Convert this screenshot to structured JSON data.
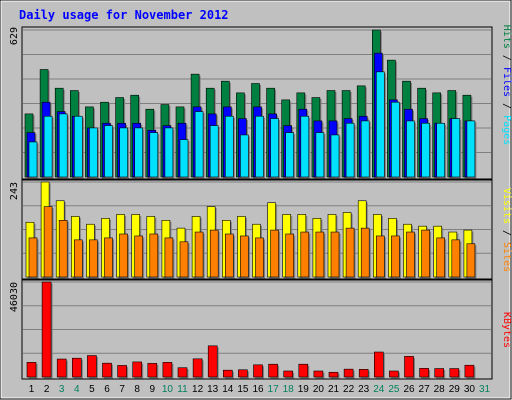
{
  "chart_data": [
    {
      "type": "bar",
      "panel": "hits-files-pages",
      "title": "Daily usage for November 2012",
      "ylabel_parts": [
        "Pages",
        "Files",
        "Hits"
      ],
      "ymax_label": "629",
      "ylim": [
        0,
        629
      ],
      "categories": [
        "1",
        "2",
        "3",
        "4",
        "5",
        "6",
        "7",
        "8",
        "9",
        "10",
        "11",
        "12",
        "13",
        "14",
        "15",
        "16",
        "17",
        "18",
        "19",
        "20",
        "21",
        "22",
        "23",
        "24",
        "25",
        "26",
        "27",
        "28",
        "29",
        "30",
        "31"
      ],
      "weekend_days": [
        "3",
        "4",
        "10",
        "11",
        "17",
        "18",
        "24",
        "25",
        "31"
      ],
      "series": [
        {
          "name": "Hits",
          "color": "#008040",
          "values": [
            270,
            460,
            380,
            370,
            300,
            320,
            340,
            350,
            290,
            310,
            300,
            440,
            380,
            410,
            360,
            400,
            380,
            330,
            360,
            340,
            370,
            370,
            390,
            629,
            500,
            410,
            380,
            360,
            370,
            350,
            null
          ]
        },
        {
          "name": "Files",
          "color": "#0000ff",
          "values": [
            190,
            320,
            280,
            260,
            210,
            230,
            230,
            230,
            200,
            220,
            230,
            300,
            270,
            300,
            250,
            300,
            270,
            220,
            290,
            240,
            240,
            250,
            260,
            530,
            330,
            290,
            250,
            230,
            250,
            240,
            null
          ]
        },
        {
          "name": "Pages",
          "color": "#00e0ff",
          "values": [
            150,
            260,
            270,
            260,
            210,
            220,
            210,
            210,
            190,
            210,
            160,
            280,
            220,
            260,
            180,
            260,
            250,
            190,
            260,
            190,
            180,
            230,
            240,
            450,
            320,
            240,
            230,
            230,
            250,
            240,
            null
          ]
        }
      ]
    },
    {
      "type": "bar",
      "panel": "visits-sites",
      "ylabel_parts": [
        "Sites",
        "Visits"
      ],
      "ymax_label": "243",
      "ylim": [
        0,
        243
      ],
      "series": [
        {
          "name": "Visits",
          "color": "#ffff00",
          "values": [
            140,
            243,
            195,
            155,
            135,
            150,
            160,
            160,
            155,
            145,
            125,
            155,
            180,
            145,
            155,
            135,
            190,
            160,
            160,
            150,
            160,
            165,
            195,
            160,
            150,
            135,
            130,
            130,
            115,
            120,
            null
          ]
        },
        {
          "name": "Sites",
          "color": "#ff8000",
          "values": [
            100,
            180,
            145,
            95,
            95,
            100,
            110,
            105,
            110,
            100,
            90,
            115,
            120,
            110,
            105,
            100,
            120,
            110,
            115,
            115,
            115,
            125,
            125,
            105,
            105,
            115,
            120,
            100,
            95,
            85,
            null
          ]
        }
      ]
    },
    {
      "type": "bar",
      "panel": "kbytes",
      "ylabel_parts": [
        "KBytes"
      ],
      "ymax_label": "46030",
      "ylim": [
        0,
        46030
      ],
      "series": [
        {
          "name": "KBytes",
          "color": "#ff0000",
          "values": [
            7100,
            46030,
            8700,
            9100,
            10400,
            6700,
            5600,
            7300,
            6600,
            7100,
            4500,
            8800,
            15100,
            3300,
            3500,
            5900,
            6200,
            2900,
            6200,
            2900,
            2300,
            3800,
            3700,
            12100,
            2900,
            10000,
            4200,
            4100,
            4100,
            5700,
            null
          ]
        }
      ]
    }
  ],
  "theme": {
    "background": "#c0c0c0",
    "grid": "#808080",
    "axis_line": "#000000",
    "title_color": "#0000ff",
    "weekday_color": "#000000",
    "weekend_color": "#00805c",
    "separator": "#000000"
  }
}
